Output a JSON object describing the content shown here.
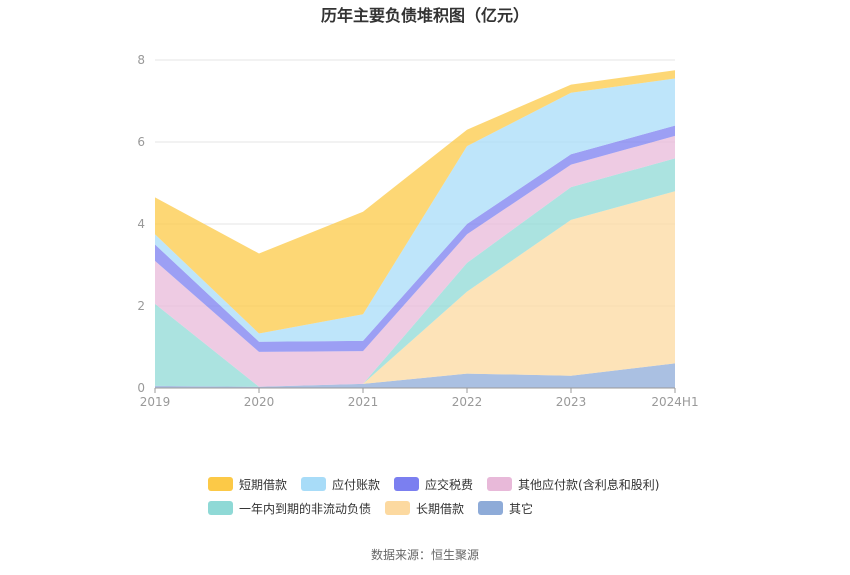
{
  "title": "历年主要负债堆积图（亿元）",
  "source": "数据来源：恒生聚源",
  "chart_data": {
    "type": "area",
    "stacked": true,
    "title": "历年主要负债堆积图（亿元）",
    "x": [
      "2019",
      "2020",
      "2021",
      "2022",
      "2023",
      "2024H1"
    ],
    "ylim": [
      0,
      8
    ],
    "yticks": [
      "0",
      "2",
      "4",
      "6",
      "8"
    ],
    "grid": true,
    "legend_position": "bottom",
    "series": [
      {
        "name": "其它",
        "color": "#8eabd8",
        "values": [
          0.05,
          0.03,
          0.1,
          0.35,
          0.3,
          0.6
        ]
      },
      {
        "name": "长期借款",
        "color": "#fcd9a0",
        "values": [
          0,
          0,
          0,
          2.0,
          3.8,
          4.2
        ]
      },
      {
        "name": "一年内到期的非流动负债",
        "color": "#8fd9d6",
        "values": [
          2.0,
          0,
          0,
          0.7,
          0.8,
          0.8
        ]
      },
      {
        "name": "其他应付款(含利息和股利)",
        "color": "#e8b9d9",
        "values": [
          1.05,
          0.85,
          0.8,
          0.7,
          0.55,
          0.55
        ]
      },
      {
        "name": "应交税费",
        "color": "#7b7ff0",
        "values": [
          0.4,
          0.25,
          0.25,
          0.25,
          0.25,
          0.25
        ]
      },
      {
        "name": "应付账款",
        "color": "#a8dcf8",
        "values": [
          0.25,
          0.2,
          0.65,
          1.9,
          1.5,
          1.15
        ]
      },
      {
        "name": "短期借款",
        "color": "#fcc947",
        "values": [
          0.9,
          1.95,
          2.5,
          0.4,
          0.2,
          0.2
        ]
      }
    ],
    "legend_order": [
      "短期借款",
      "应付账款",
      "应交税费",
      "其他应付款(含利息和股利)",
      "一年内到期的非流动负债",
      "长期借款",
      "其它"
    ]
  }
}
